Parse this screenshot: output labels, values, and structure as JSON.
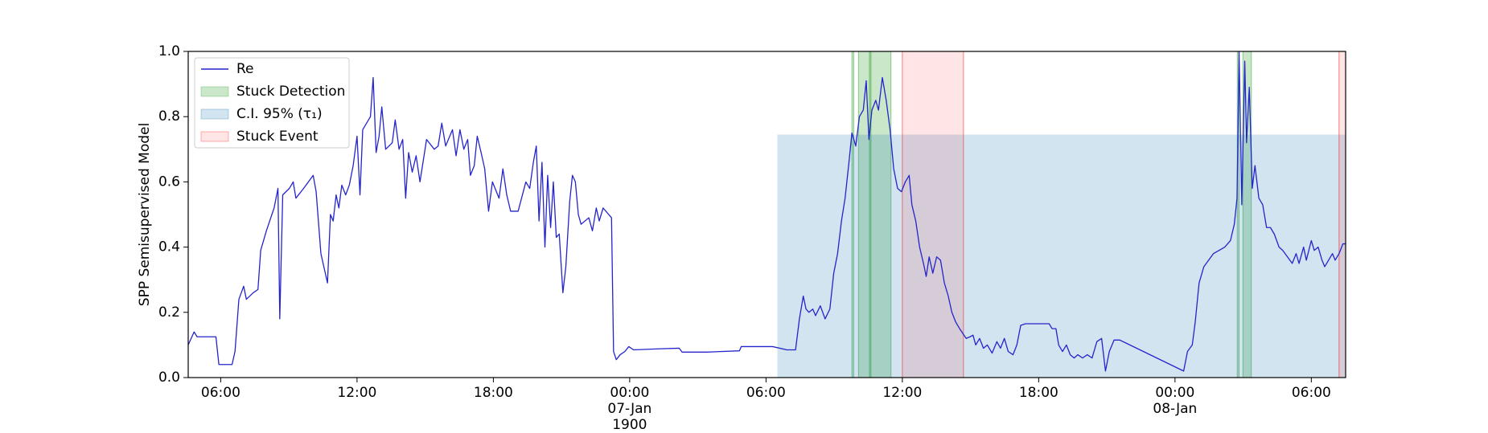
{
  "chart_data": {
    "type": "line",
    "y_label": "SPP Semisupervised Model",
    "xlim": [
      4.57,
      55.51
    ],
    "xticks": [
      {
        "value": 6,
        "label": "06:00"
      },
      {
        "value": 12,
        "label": "12:00"
      },
      {
        "value": 18,
        "label": "18:00"
      },
      {
        "value": 24,
        "label": "00:00\n07-Jan\n1900"
      },
      {
        "value": 30,
        "label": "06:00"
      },
      {
        "value": 36,
        "label": "12:00"
      },
      {
        "value": 42,
        "label": "18:00"
      },
      {
        "value": 48,
        "label": "00:00\n08-Jan"
      },
      {
        "value": 54,
        "label": "06:00"
      }
    ],
    "ylim": [
      0,
      1
    ],
    "yticks": [
      {
        "value": 0,
        "label": "0.0"
      },
      {
        "value": 0.2,
        "label": "0.2"
      },
      {
        "value": 0.4,
        "label": "0.4"
      },
      {
        "value": 0.6,
        "label": "0.6"
      },
      {
        "value": 0.8,
        "label": "0.8"
      },
      {
        "value": 1,
        "label": "1.0"
      }
    ],
    "x": [
      4.57,
      4.83,
      4.96,
      5.79,
      5.92,
      6.5,
      6.63,
      6.8,
      7.01,
      7.13,
      7.43,
      7.64,
      7.76,
      8.01,
      8.35,
      8.52,
      8.6,
      8.73,
      9.02,
      9.19,
      9.31,
      9.65,
      10.07,
      10.2,
      10.41,
      10.7,
      10.83,
      10.95,
      11.08,
      11.2,
      11.33,
      11.5,
      11.66,
      11.83,
      12.0,
      12.13,
      12.25,
      12.59,
      12.71,
      12.84,
      12.97,
      13.09,
      13.26,
      13.55,
      13.68,
      13.85,
      14.01,
      14.14,
      14.27,
      14.43,
      14.6,
      14.77,
      15.06,
      15.4,
      15.57,
      15.73,
      15.9,
      16.2,
      16.36,
      16.53,
      16.7,
      16.87,
      16.99,
      17.16,
      17.29,
      17.46,
      17.62,
      17.79,
      17.96,
      18.25,
      18.42,
      18.59,
      18.76,
      19.09,
      19.43,
      19.6,
      19.76,
      19.89,
      20.01,
      20.14,
      20.27,
      20.39,
      20.52,
      20.64,
      20.77,
      20.9,
      21.06,
      21.19,
      21.36,
      21.48,
      21.61,
      21.74,
      21.86,
      22.2,
      22.36,
      22.53,
      22.66,
      22.83,
      23.2,
      23.29,
      23.41,
      23.58,
      23.79,
      23.96,
      24.17,
      25.26,
      26.18,
      26.31,
      27.36,
      28.83,
      28.91,
      30.29,
      30.92,
      31.3,
      31.47,
      31.64,
      31.76,
      31.89,
      32.06,
      32.18,
      32.39,
      32.6,
      32.81,
      32.98,
      33.15,
      33.32,
      33.48,
      33.65,
      33.78,
      33.95,
      34.11,
      34.28,
      34.41,
      34.53,
      34.66,
      34.83,
      34.95,
      35.12,
      35.29,
      35.46,
      35.62,
      35.79,
      35.96,
      36.13,
      36.3,
      36.42,
      36.59,
      36.76,
      36.93,
      37.05,
      37.18,
      37.34,
      37.51,
      37.68,
      37.85,
      38.02,
      38.18,
      38.35,
      38.52,
      38.81,
      38.98,
      39.11,
      39.23,
      39.4,
      39.57,
      39.74,
      39.95,
      40.16,
      40.32,
      40.49,
      40.66,
      40.87,
      41.04,
      41.21,
      41.42,
      42.46,
      42.59,
      42.76,
      42.88,
      43.05,
      43.22,
      43.39,
      43.56,
      43.72,
      43.93,
      44.14,
      44.35,
      44.56,
      44.77,
      44.94,
      45.11,
      45.32,
      45.57,
      48.38,
      48.55,
      48.76,
      48.89,
      49.06,
      49.27,
      49.48,
      49.69,
      49.94,
      50.19,
      50.44,
      50.61,
      50.73,
      50.82,
      50.94,
      51.07,
      51.15,
      51.27,
      51.4,
      51.52,
      51.69,
      51.86,
      52.03,
      52.2,
      52.37,
      52.58,
      52.74,
      52.95,
      53.16,
      53.33,
      53.46,
      53.66,
      53.78,
      54.0,
      54.13,
      54.3,
      54.47,
      54.59,
      54.76,
      54.93,
      55.05,
      55.22,
      55.39,
      55.51
    ],
    "series": [
      {
        "name": "Re",
        "color": "#2424cc",
        "values": [
          0.1,
          0.14,
          0.125,
          0.125,
          0.04,
          0.04,
          0.08,
          0.24,
          0.28,
          0.24,
          0.26,
          0.27,
          0.39,
          0.45,
          0.52,
          0.58,
          0.18,
          0.56,
          0.58,
          0.6,
          0.55,
          0.58,
          0.62,
          0.57,
          0.38,
          0.29,
          0.5,
          0.48,
          0.56,
          0.52,
          0.59,
          0.56,
          0.59,
          0.65,
          0.74,
          0.56,
          0.76,
          0.8,
          0.92,
          0.69,
          0.74,
          0.83,
          0.7,
          0.72,
          0.79,
          0.7,
          0.73,
          0.55,
          0.69,
          0.63,
          0.68,
          0.6,
          0.73,
          0.7,
          0.71,
          0.78,
          0.71,
          0.76,
          0.68,
          0.76,
          0.7,
          0.73,
          0.62,
          0.65,
          0.74,
          0.69,
          0.64,
          0.51,
          0.6,
          0.55,
          0.64,
          0.56,
          0.51,
          0.51,
          0.6,
          0.58,
          0.66,
          0.71,
          0.48,
          0.66,
          0.4,
          0.62,
          0.46,
          0.6,
          0.43,
          0.44,
          0.26,
          0.34,
          0.54,
          0.62,
          0.6,
          0.5,
          0.47,
          0.49,
          0.45,
          0.52,
          0.48,
          0.52,
          0.49,
          0.08,
          0.055,
          0.07,
          0.08,
          0.095,
          0.085,
          0.088,
          0.09,
          0.078,
          0.078,
          0.082,
          0.095,
          0.095,
          0.085,
          0.085,
          0.18,
          0.25,
          0.21,
          0.2,
          0.21,
          0.19,
          0.22,
          0.18,
          0.21,
          0.32,
          0.38,
          0.48,
          0.55,
          0.66,
          0.75,
          0.71,
          0.8,
          0.82,
          0.91,
          0.73,
          0.82,
          0.85,
          0.82,
          0.92,
          0.85,
          0.76,
          0.64,
          0.58,
          0.57,
          0.6,
          0.62,
          0.53,
          0.48,
          0.4,
          0.35,
          0.31,
          0.37,
          0.32,
          0.37,
          0.36,
          0.29,
          0.25,
          0.2,
          0.17,
          0.15,
          0.12,
          0.125,
          0.13,
          0.1,
          0.12,
          0.09,
          0.1,
          0.075,
          0.11,
          0.09,
          0.12,
          0.08,
          0.07,
          0.1,
          0.16,
          0.165,
          0.165,
          0.15,
          0.15,
          0.1,
          0.08,
          0.1,
          0.07,
          0.06,
          0.07,
          0.06,
          0.07,
          0.06,
          0.11,
          0.12,
          0.02,
          0.08,
          0.115,
          0.115,
          0.02,
          0.08,
          0.1,
          0.17,
          0.29,
          0.34,
          0.36,
          0.38,
          0.39,
          0.4,
          0.42,
          0.47,
          0.55,
          1.0,
          0.53,
          0.97,
          0.72,
          0.89,
          0.58,
          0.65,
          0.55,
          0.53,
          0.46,
          0.46,
          0.44,
          0.4,
          0.39,
          0.37,
          0.35,
          0.38,
          0.35,
          0.4,
          0.36,
          0.42,
          0.39,
          0.4,
          0.36,
          0.34,
          0.36,
          0.38,
          0.36,
          0.38,
          0.41,
          0.41
        ]
      }
    ],
    "bands": [
      {
        "name": "Stuck Detection",
        "color": "#2ca02c",
        "opacity": 0.25,
        "ranges": [
          [
            33.78,
            33.86
          ],
          [
            34.07,
            35.5
          ],
          [
            34.55,
            34.62
          ],
          [
            50.74,
            50.82
          ],
          [
            50.99,
            51.36
          ]
        ]
      },
      {
        "name": "C.I. 95% (τ₁)",
        "color": "#1f77b4",
        "opacity": 0.2,
        "ranges": [
          [
            30.5,
            55.51
          ]
        ],
        "y": [
          0,
          0.745
        ]
      },
      {
        "name": "Stuck Event",
        "color": "#ff0000",
        "opacity": 0.1,
        "ranges": [
          [
            36.0,
            38.69
          ],
          [
            55.22,
            55.51
          ]
        ]
      }
    ]
  }
}
